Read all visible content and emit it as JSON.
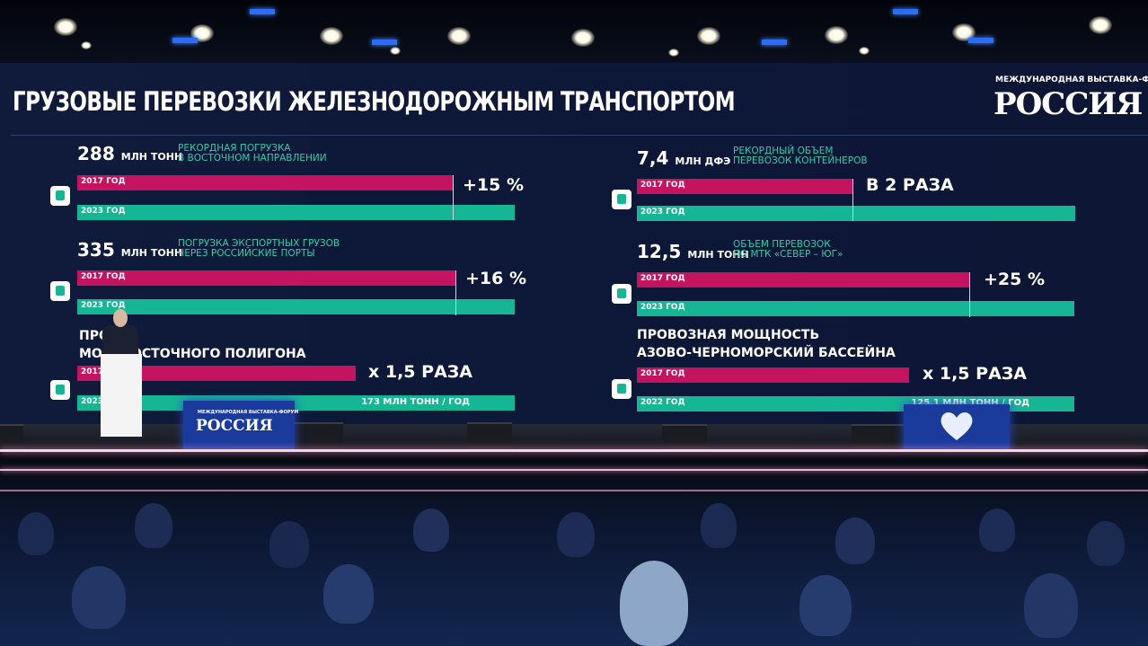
{
  "slide": {
    "title": "ГРУЗОВЫЕ ПЕРЕВОЗКИ ЖЕЛЕЗНОДОРОЖНЫМ ТРАНСПОРТОМ",
    "logo_caption": "МЕЖДУНАРОДНАЯ ВЫСТАВКА-ФОРУМ",
    "logo_word": "РОССИЯ",
    "blocks": [
      {
        "number": "288",
        "unit": "МЛН ТОНН",
        "desc_line1": "РЕКОРДНАЯ ПОГРУЗКА",
        "desc_line2": "В ВОСТОЧНОМ НАПРАВЛЕНИИ",
        "bar1_label": "2017 ГОД",
        "bar2_label": "2023 ГОД",
        "change": "+15 %",
        "bar1_fraction": 0.86
      },
      {
        "number": "335",
        "unit": "МЛН ТОНН",
        "desc_line1": "ПОГРУЗКА ЭКСПОРТНЫХ ГРУЗОВ",
        "desc_line2": "ЧЕРЕЗ РОССИЙСКИЕ ПОРТЫ",
        "bar1_label": "2017 ГОД",
        "bar2_label": "2023 ГОД",
        "change": "+16 %",
        "bar1_fraction": 0.86
      },
      {
        "title_line1": "ПРО    НЕ",
        "title_line2": "МО       И ВОСТОЧНОГО ПОЛИГОНА",
        "bar1_label": "2017 ГОД",
        "bar2_label": "2023 ГОД",
        "change": "x 1,5 РАЗА",
        "bar2_value": "173 МЛН ТОНН / ГОД",
        "bar1_fraction": 0.67
      },
      {
        "number": "7,4",
        "unit": "МЛН ДФЭ",
        "desc_line1": "РЕКОРДНЫЙ ОБЪЕМ",
        "desc_line2": "ПЕРЕВОЗОК КОНТЕЙНЕРОВ",
        "bar1_label": "2017 ГОД",
        "bar2_label": "2023 ГОД",
        "change": "В 2 РАЗА",
        "bar1_fraction": 0.5
      },
      {
        "number": "12,5",
        "unit": "МЛН ТОНН",
        "desc_line1": "ОБЪЕМ ПЕРЕВОЗОК",
        "desc_line2": "ПО МТК «СЕВЕР – ЮГ»",
        "bar1_label": "2017 ГОД",
        "bar2_label": "2023 ГОД",
        "change": "+25 %",
        "bar1_fraction": 0.8
      },
      {
        "title_line1": "ПРОВОЗНАЯ МОЩНОСТЬ",
        "title_line2": "АЗОВО-ЧЕРНОМОРСКИЙ БАССЕЙНА",
        "bar1_label": "2017 ГОД",
        "bar2_label": "2022 ГОД",
        "change": "x 1,5 РАЗА",
        "bar2_value": "125,1 МЛН ТОНН / ГОД",
        "bar1_fraction": 0.63
      }
    ]
  },
  "stage": {
    "podium_caption": "МЕЖДУНАРОДНАЯ ВЫСТАВКА-ФОРУМ",
    "podium_word": "РОССИЯ"
  },
  "colors": {
    "pink": "#c4145f",
    "green": "#16b594",
    "accent_text": "#2fcfa8",
    "screen_bg": "#0d1738"
  }
}
